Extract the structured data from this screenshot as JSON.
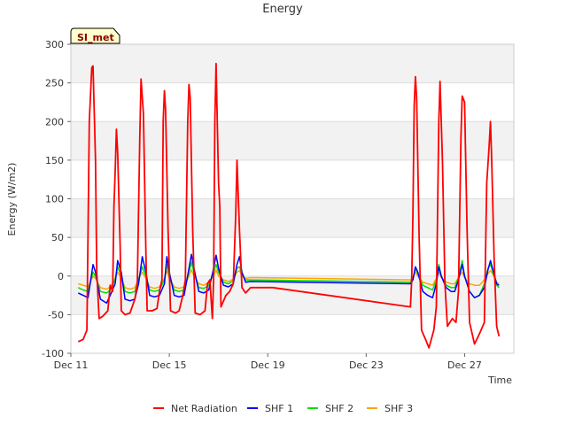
{
  "chart_data": {
    "type": "line",
    "title": "Energy",
    "xlabel": "Time",
    "ylabel": "Energy (W/m2)",
    "site_label": "SI_met",
    "ylim": [
      -100,
      300
    ],
    "xlim": [
      0,
      18
    ],
    "yticks": [
      -100,
      -50,
      0,
      50,
      100,
      150,
      200,
      250,
      300
    ],
    "xticks": [
      {
        "value": 0,
        "label": "Dec 11"
      },
      {
        "value": 4,
        "label": "Dec 15"
      },
      {
        "value": 8,
        "label": "Dec 19"
      },
      {
        "value": 12,
        "label": "Dec 23"
      },
      {
        "value": 16,
        "label": "Dec 27"
      }
    ],
    "grid": true,
    "legend_position": "bottom",
    "colors": {
      "Net Radiation": "#ff0000",
      "SHF 1": "#0000ff",
      "SHF 2": "#00e000",
      "SHF 3": "#ffa500",
      "badge_fill": "#ffffcc",
      "band": "#f2f2f2"
    },
    "series": [
      {
        "name": "Net Radiation",
        "points": [
          [
            0.3,
            -85
          ],
          [
            0.5,
            -82
          ],
          [
            0.65,
            -70
          ],
          [
            0.75,
            200
          ],
          [
            0.85,
            270
          ],
          [
            0.9,
            272
          ],
          [
            1.0,
            150
          ],
          [
            1.05,
            5
          ],
          [
            1.15,
            -55
          ],
          [
            1.3,
            -52
          ],
          [
            1.5,
            -45
          ],
          [
            1.6,
            -12
          ],
          [
            1.7,
            -20
          ],
          [
            1.75,
            90
          ],
          [
            1.8,
            135
          ],
          [
            1.85,
            190
          ],
          [
            1.9,
            160
          ],
          [
            2.0,
            40
          ],
          [
            2.05,
            -45
          ],
          [
            2.2,
            -50
          ],
          [
            2.4,
            -48
          ],
          [
            2.6,
            -30
          ],
          [
            2.7,
            -10
          ],
          [
            2.8,
            180
          ],
          [
            2.85,
            255
          ],
          [
            2.95,
            210
          ],
          [
            3.05,
            30
          ],
          [
            3.1,
            -45
          ],
          [
            3.3,
            -45
          ],
          [
            3.5,
            -42
          ],
          [
            3.6,
            -20
          ],
          [
            3.7,
            -5
          ],
          [
            3.75,
            200
          ],
          [
            3.8,
            240
          ],
          [
            3.85,
            215
          ],
          [
            3.95,
            60
          ],
          [
            4.05,
            -45
          ],
          [
            4.25,
            -48
          ],
          [
            4.4,
            -45
          ],
          [
            4.55,
            -25
          ],
          [
            4.65,
            -5
          ],
          [
            4.75,
            200
          ],
          [
            4.8,
            248
          ],
          [
            4.85,
            230
          ],
          [
            4.95,
            60
          ],
          [
            5.05,
            -48
          ],
          [
            5.25,
            -50
          ],
          [
            5.45,
            -45
          ],
          [
            5.55,
            -10
          ],
          [
            5.65,
            -5
          ],
          [
            5.75,
            -55
          ],
          [
            5.8,
            -5
          ],
          [
            5.85,
            200
          ],
          [
            5.9,
            275
          ],
          [
            6.0,
            120
          ],
          [
            6.05,
            90
          ],
          [
            6.1,
            -40
          ],
          [
            6.3,
            -25
          ],
          [
            6.45,
            -20
          ],
          [
            6.6,
            -10
          ],
          [
            6.7,
            80
          ],
          [
            6.75,
            150
          ],
          [
            6.85,
            60
          ],
          [
            6.95,
            -15
          ],
          [
            7.1,
            -22
          ],
          [
            7.3,
            -15
          ],
          [
            8.2,
            -15
          ],
          [
            13.8,
            -40
          ],
          [
            13.85,
            -5
          ],
          [
            13.9,
            80
          ],
          [
            13.95,
            220
          ],
          [
            14.0,
            258
          ],
          [
            14.05,
            230
          ],
          [
            14.15,
            50
          ],
          [
            14.25,
            -70
          ],
          [
            14.45,
            -85
          ],
          [
            14.55,
            -93
          ],
          [
            14.75,
            -70
          ],
          [
            14.85,
            -40
          ],
          [
            14.95,
            200
          ],
          [
            15.0,
            252
          ],
          [
            15.1,
            150
          ],
          [
            15.2,
            -10
          ],
          [
            15.3,
            -65
          ],
          [
            15.5,
            -55
          ],
          [
            15.65,
            -60
          ],
          [
            15.75,
            -20
          ],
          [
            15.85,
            180
          ],
          [
            15.9,
            233
          ],
          [
            16.0,
            225
          ],
          [
            16.1,
            60
          ],
          [
            16.2,
            -60
          ],
          [
            16.4,
            -88
          ],
          [
            16.6,
            -75
          ],
          [
            16.8,
            -60
          ],
          [
            16.9,
            120
          ],
          [
            17.0,
            170
          ],
          [
            17.05,
            200
          ],
          [
            17.1,
            150
          ],
          [
            17.2,
            20
          ],
          [
            17.3,
            -65
          ],
          [
            17.4,
            -78
          ]
        ]
      },
      {
        "name": "SHF 1",
        "points": [
          [
            0.3,
            -22
          ],
          [
            0.5,
            -25
          ],
          [
            0.7,
            -28
          ],
          [
            0.9,
            15
          ],
          [
            1.0,
            5
          ],
          [
            1.2,
            -30
          ],
          [
            1.45,
            -35
          ],
          [
            1.6,
            -25
          ],
          [
            1.8,
            -10
          ],
          [
            1.9,
            20
          ],
          [
            2.05,
            5
          ],
          [
            2.2,
            -30
          ],
          [
            2.4,
            -32
          ],
          [
            2.6,
            -30
          ],
          [
            2.75,
            -10
          ],
          [
            2.9,
            25
          ],
          [
            3.05,
            5
          ],
          [
            3.2,
            -25
          ],
          [
            3.4,
            -27
          ],
          [
            3.6,
            -25
          ],
          [
            3.8,
            -10
          ],
          [
            3.9,
            25
          ],
          [
            4.0,
            5
          ],
          [
            4.2,
            -25
          ],
          [
            4.4,
            -27
          ],
          [
            4.6,
            -25
          ],
          [
            4.8,
            10
          ],
          [
            4.9,
            28
          ],
          [
            5.0,
            10
          ],
          [
            5.2,
            -20
          ],
          [
            5.4,
            -22
          ],
          [
            5.6,
            -18
          ],
          [
            5.8,
            10
          ],
          [
            5.9,
            27
          ],
          [
            6.0,
            10
          ],
          [
            6.2,
            -12
          ],
          [
            6.4,
            -14
          ],
          [
            6.6,
            -10
          ],
          [
            6.75,
            15
          ],
          [
            6.85,
            25
          ],
          [
            6.95,
            5
          ],
          [
            7.1,
            -8
          ],
          [
            7.3,
            -7
          ],
          [
            13.8,
            -10
          ],
          [
            13.9,
            -5
          ],
          [
            14.0,
            12
          ],
          [
            14.1,
            5
          ],
          [
            14.3,
            -20
          ],
          [
            14.5,
            -25
          ],
          [
            14.7,
            -28
          ],
          [
            14.85,
            -10
          ],
          [
            14.95,
            12
          ],
          [
            15.05,
            0
          ],
          [
            15.25,
            -15
          ],
          [
            15.45,
            -20
          ],
          [
            15.6,
            -20
          ],
          [
            15.75,
            -5
          ],
          [
            15.9,
            15
          ],
          [
            16.0,
            0
          ],
          [
            16.2,
            -20
          ],
          [
            16.4,
            -28
          ],
          [
            16.6,
            -25
          ],
          [
            16.8,
            -15
          ],
          [
            16.95,
            8
          ],
          [
            17.05,
            20
          ],
          [
            17.15,
            8
          ],
          [
            17.3,
            -10
          ],
          [
            17.4,
            -12
          ]
        ]
      },
      {
        "name": "SHF 2",
        "points": [
          [
            0.3,
            -15
          ],
          [
            0.5,
            -18
          ],
          [
            0.7,
            -20
          ],
          [
            0.9,
            5
          ],
          [
            1.0,
            0
          ],
          [
            1.2,
            -20
          ],
          [
            1.45,
            -22
          ],
          [
            1.6,
            -18
          ],
          [
            1.8,
            -5
          ],
          [
            1.9,
            12
          ],
          [
            2.05,
            0
          ],
          [
            2.2,
            -20
          ],
          [
            2.4,
            -22
          ],
          [
            2.6,
            -20
          ],
          [
            2.75,
            -5
          ],
          [
            2.9,
            12
          ],
          [
            3.05,
            0
          ],
          [
            3.2,
            -18
          ],
          [
            3.4,
            -20
          ],
          [
            3.6,
            -18
          ],
          [
            3.8,
            -5
          ],
          [
            3.9,
            15
          ],
          [
            4.0,
            0
          ],
          [
            4.2,
            -18
          ],
          [
            4.4,
            -20
          ],
          [
            4.6,
            -18
          ],
          [
            4.8,
            5
          ],
          [
            4.9,
            18
          ],
          [
            5.0,
            5
          ],
          [
            5.2,
            -15
          ],
          [
            5.4,
            -16
          ],
          [
            5.6,
            -12
          ],
          [
            5.8,
            5
          ],
          [
            5.9,
            15
          ],
          [
            6.0,
            5
          ],
          [
            6.2,
            -8
          ],
          [
            6.4,
            -10
          ],
          [
            6.6,
            -6
          ],
          [
            6.75,
            10
          ],
          [
            6.85,
            12
          ],
          [
            6.95,
            3
          ],
          [
            7.1,
            -5
          ],
          [
            7.3,
            -5
          ],
          [
            13.8,
            -8
          ],
          [
            13.9,
            -3
          ],
          [
            14.0,
            10
          ],
          [
            14.1,
            3
          ],
          [
            14.3,
            -12
          ],
          [
            14.5,
            -15
          ],
          [
            14.7,
            -18
          ],
          [
            14.85,
            -5
          ],
          [
            14.95,
            15
          ],
          [
            15.05,
            0
          ],
          [
            15.25,
            -12
          ],
          [
            15.45,
            -15
          ],
          [
            15.6,
            -15
          ],
          [
            15.75,
            -2
          ],
          [
            15.9,
            20
          ],
          [
            16.0,
            0
          ],
          [
            16.2,
            -20
          ],
          [
            16.4,
            -28
          ],
          [
            16.6,
            -25
          ],
          [
            16.8,
            -10
          ],
          [
            16.95,
            10
          ],
          [
            17.05,
            15
          ],
          [
            17.15,
            5
          ],
          [
            17.3,
            -12
          ],
          [
            17.4,
            -15
          ]
        ]
      },
      {
        "name": "SHF 3",
        "points": [
          [
            0.3,
            -10
          ],
          [
            0.5,
            -12
          ],
          [
            0.7,
            -14
          ],
          [
            0.9,
            0
          ],
          [
            1.0,
            -3
          ],
          [
            1.2,
            -15
          ],
          [
            1.45,
            -17
          ],
          [
            1.6,
            -14
          ],
          [
            1.8,
            -3
          ],
          [
            1.9,
            5
          ],
          [
            2.05,
            -3
          ],
          [
            2.2,
            -15
          ],
          [
            2.4,
            -17
          ],
          [
            2.6,
            -15
          ],
          [
            2.75,
            -3
          ],
          [
            2.9,
            5
          ],
          [
            3.05,
            -3
          ],
          [
            3.2,
            -14
          ],
          [
            3.4,
            -16
          ],
          [
            3.6,
            -14
          ],
          [
            3.8,
            -3
          ],
          [
            3.9,
            7
          ],
          [
            4.0,
            -3
          ],
          [
            4.2,
            -14
          ],
          [
            4.4,
            -16
          ],
          [
            4.6,
            -14
          ],
          [
            4.8,
            0
          ],
          [
            4.9,
            8
          ],
          [
            5.0,
            0
          ],
          [
            5.2,
            -10
          ],
          [
            5.4,
            -12
          ],
          [
            5.6,
            -8
          ],
          [
            5.8,
            0
          ],
          [
            5.9,
            8
          ],
          [
            6.0,
            0
          ],
          [
            6.2,
            -5
          ],
          [
            6.4,
            -7
          ],
          [
            6.6,
            -4
          ],
          [
            6.75,
            5
          ],
          [
            6.85,
            7
          ],
          [
            6.95,
            0
          ],
          [
            7.1,
            -3
          ],
          [
            7.3,
            -2
          ],
          [
            13.8,
            -5
          ],
          [
            13.9,
            -2
          ],
          [
            14.0,
            5
          ],
          [
            14.1,
            0
          ],
          [
            14.3,
            -8
          ],
          [
            14.5,
            -10
          ],
          [
            14.7,
            -12
          ],
          [
            14.85,
            -3
          ],
          [
            14.95,
            5
          ],
          [
            15.05,
            -2
          ],
          [
            15.25,
            -8
          ],
          [
            15.45,
            -10
          ],
          [
            15.6,
            -10
          ],
          [
            15.75,
            -2
          ],
          [
            15.9,
            5
          ],
          [
            16.0,
            -2
          ],
          [
            16.2,
            -10
          ],
          [
            16.4,
            -12
          ],
          [
            16.6,
            -12
          ],
          [
            16.8,
            -5
          ],
          [
            16.95,
            3
          ],
          [
            17.05,
            7
          ],
          [
            17.15,
            2
          ],
          [
            17.3,
            -8
          ],
          [
            17.4,
            -10
          ]
        ]
      }
    ]
  }
}
